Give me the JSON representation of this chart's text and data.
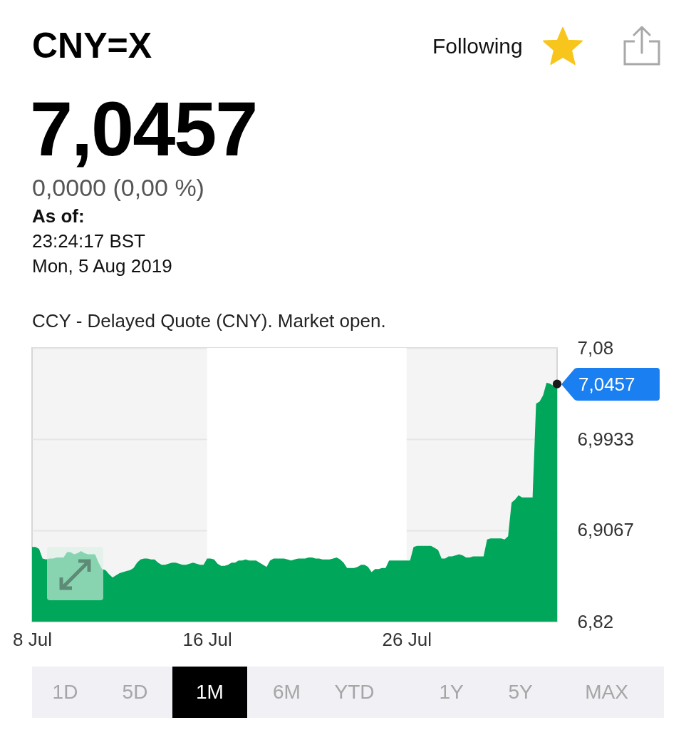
{
  "chart_data": {
    "type": "area",
    "title": "CNY=X",
    "subtitle": "CCY - Delayed Quote (CNY). Market open.",
    "categories": [
      "8 Jul",
      null,
      null,
      null,
      null,
      null,
      null,
      null,
      null,
      null,
      null,
      null,
      null,
      null,
      null,
      null,
      null,
      null,
      null,
      null,
      null,
      null,
      null,
      null,
      null,
      null,
      null,
      null,
      null,
      null,
      null,
      null,
      null,
      null,
      null,
      null,
      null,
      null,
      null,
      null,
      null,
      null,
      null,
      null,
      null,
      null,
      null,
      null,
      null,
      null,
      "16 Jul",
      null,
      null,
      null,
      null,
      null,
      null,
      null,
      null,
      null,
      null,
      null,
      null,
      null,
      null,
      null,
      null,
      null,
      null,
      null,
      null,
      null,
      null,
      null,
      null,
      null,
      null,
      null,
      null,
      null,
      null,
      null,
      null,
      null,
      null,
      null,
      null,
      null,
      null,
      null,
      null,
      null,
      null,
      null,
      null,
      null,
      null,
      null,
      null,
      null,
      null,
      null,
      null,
      null,
      null,
      null,
      null,
      "26 Jul",
      null,
      null,
      null,
      null,
      null,
      null,
      null,
      null,
      null,
      null,
      null,
      null,
      null,
      null,
      null,
      null,
      null,
      null,
      null,
      null,
      null,
      null,
      null,
      null,
      null,
      null,
      null,
      null,
      null,
      null,
      null,
      null,
      null,
      null,
      null,
      null,
      null,
      null,
      null,
      null,
      null,
      null,
      null
    ],
    "values": [
      6.891,
      6.891,
      6.889,
      6.88,
      6.879,
      6.88,
      6.88,
      6.881,
      6.881,
      6.881,
      6.886,
      6.886,
      6.884,
      6.885,
      6.887,
      6.885,
      6.884,
      6.884,
      6.884,
      6.876,
      6.87,
      6.869,
      6.865,
      6.862,
      6.864,
      6.866,
      6.867,
      6.868,
      6.869,
      6.871,
      6.876,
      6.879,
      6.88,
      6.88,
      6.879,
      6.879,
      6.876,
      6.874,
      6.874,
      6.875,
      6.876,
      6.876,
      6.875,
      6.874,
      6.874,
      6.875,
      6.876,
      6.875,
      6.874,
      6.874,
      6.88,
      6.88,
      6.879,
      6.875,
      6.873,
      6.873,
      6.874,
      6.876,
      6.876,
      6.878,
      6.878,
      6.879,
      6.878,
      6.878,
      6.878,
      6.876,
      6.874,
      6.872,
      6.878,
      6.88,
      6.88,
      6.88,
      6.88,
      6.879,
      6.878,
      6.879,
      6.88,
      6.88,
      6.88,
      6.881,
      6.881,
      6.88,
      6.88,
      6.879,
      6.879,
      6.879,
      6.88,
      6.881,
      6.879,
      6.876,
      6.871,
      6.871,
      6.871,
      6.872,
      6.874,
      6.874,
      6.872,
      6.867,
      6.87,
      6.87,
      6.871,
      6.871,
      6.878,
      6.878,
      6.878,
      6.878,
      6.878,
      6.878,
      6.878,
      6.891,
      6.892,
      6.892,
      6.892,
      6.892,
      6.892,
      6.89,
      6.888,
      6.88,
      6.88,
      6.882,
      6.882,
      6.883,
      6.884,
      6.883,
      6.881,
      6.881,
      6.882,
      6.882,
      6.882,
      6.882,
      6.898,
      6.899,
      6.899,
      6.899,
      6.899,
      6.898,
      6.901,
      6.933,
      6.936,
      6.94,
      6.938,
      6.938,
      6.938,
      6.938,
      7.027,
      7.029,
      7.035,
      7.047,
      7.046,
      7.044,
      7.0457
    ],
    "color": "#00a65a",
    "ylim": [
      6.82,
      7.08
    ],
    "yticks": [
      {
        "value": 6.82,
        "label": "6,82"
      },
      {
        "value": 6.9067,
        "label": "6,9067"
      },
      {
        "value": 6.9933,
        "label": "6,9933"
      },
      {
        "value": 7.08,
        "label": "7,08"
      }
    ],
    "grid": "y",
    "bands": [
      {
        "axis": "x",
        "from": "16 Jul",
        "to": "26 Jul",
        "color": "#ffffff"
      }
    ],
    "annotations": [
      "Following",
      "7,0457",
      "0,0000 (0,00 %)",
      "As of:",
      "23:24:17 BST",
      "Mon, 5 Aug 2019",
      "1D",
      "5D",
      "1M",
      "6M",
      "YTD",
      "1Y",
      "5Y",
      "MAX",
      "7,0457"
    ]
  }
}
